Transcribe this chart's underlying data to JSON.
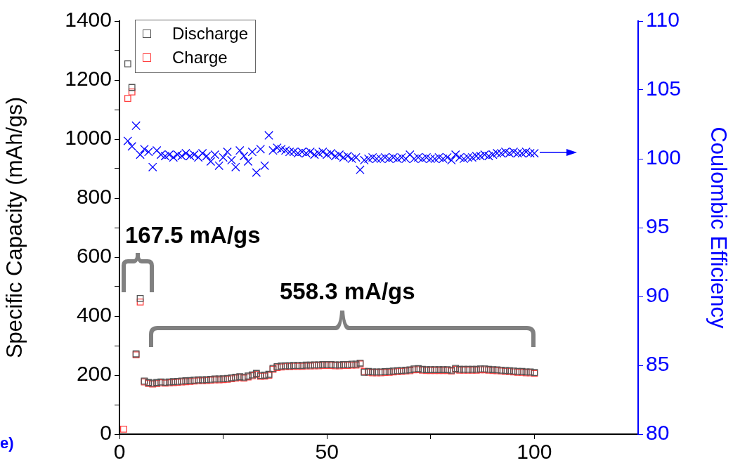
{
  "chart_data": {
    "type": "scatter",
    "ylabel": "Specific Capacity (mAh/gs)",
    "y2label": "Coulombic Efficiency",
    "grid": false,
    "legend": "top left",
    "xlim": [
      0,
      125
    ],
    "xticks": [
      0,
      {
        "value": 25,
        "label": null
      },
      50,
      {
        "value": 75,
        "label": null
      },
      100
    ],
    "ylim": [
      0,
      1400
    ],
    "yticks": [
      0,
      {
        "value": 100,
        "label": null
      },
      200,
      {
        "value": 300,
        "label": null
      },
      400,
      {
        "value": 500,
        "label": null
      },
      600,
      {
        "value": 700,
        "label": null
      },
      800,
      {
        "value": 900,
        "label": null
      },
      1000,
      {
        "value": 1100,
        "label": null
      },
      1200,
      {
        "value": 1300,
        "label": null
      },
      1400
    ],
    "y2lim": [
      80,
      110
    ],
    "y2ticks": [
      80,
      85,
      90,
      95,
      100,
      105,
      110
    ],
    "annotations": [
      "167.5 mA/gs",
      "558.3 mA/gs",
      "e)"
    ],
    "series": [
      {
        "name": "Discharge",
        "color": "#555555",
        "marker": "square",
        "x": [
          2,
          3,
          4,
          5,
          6,
          7,
          8,
          9,
          10,
          11,
          12,
          13,
          14,
          15,
          16,
          17,
          18,
          19,
          20,
          21,
          22,
          23,
          24,
          25,
          26,
          27,
          28,
          29,
          30,
          31,
          32,
          33,
          34,
          35,
          36,
          37,
          38,
          39,
          40,
          41,
          42,
          43,
          44,
          45,
          46,
          47,
          48,
          49,
          50,
          51,
          52,
          53,
          54,
          55,
          56,
          57,
          58,
          59,
          60,
          61,
          62,
          63,
          64,
          65,
          66,
          67,
          68,
          69,
          70,
          71,
          72,
          73,
          74,
          75,
          76,
          77,
          78,
          79,
          80,
          81,
          82,
          83,
          84,
          85,
          86,
          87,
          88,
          89,
          90,
          91,
          92,
          93,
          94,
          95,
          96,
          97,
          98,
          99,
          100
        ],
        "values": [
          1255,
          1175,
          272,
          460,
          180,
          175,
          173,
          175,
          177,
          176,
          177,
          178,
          179,
          180,
          181,
          182,
          183,
          184,
          184,
          185,
          186,
          187,
          187,
          188,
          189,
          191,
          193,
          195,
          193,
          197,
          201,
          206,
          199,
          200,
          203,
          223,
          229,
          231,
          232,
          232,
          233,
          233,
          233,
          234,
          234,
          235,
          235,
          236,
          236,
          236,
          235,
          235,
          236,
          236,
          237,
          237,
          241,
          210,
          213,
          211,
          211,
          211,
          212,
          213,
          214,
          215,
          216,
          217,
          218,
          221,
          222,
          220,
          219,
          219,
          219,
          219,
          219,
          219,
          217,
          223,
          220,
          220,
          220,
          220,
          220,
          221,
          221,
          220,
          219,
          218,
          217,
          216,
          215,
          214,
          213,
          213,
          211,
          211,
          209
        ]
      },
      {
        "name": "Charge",
        "color": "#ff4040",
        "marker": "square",
        "x": [
          1,
          2,
          3,
          4,
          5,
          6,
          7,
          8,
          9,
          10,
          11,
          12,
          13,
          14,
          15,
          16,
          17,
          18,
          19,
          20,
          21,
          22,
          23,
          24,
          25,
          26,
          27,
          28,
          29,
          30,
          31,
          32,
          33,
          34,
          35,
          36,
          37,
          38,
          39,
          40,
          41,
          42,
          43,
          44,
          45,
          46,
          47,
          48,
          49,
          50,
          51,
          52,
          53,
          54,
          55,
          56,
          57,
          58,
          59,
          60,
          61,
          62,
          63,
          64,
          65,
          66,
          67,
          68,
          69,
          70,
          71,
          72,
          73,
          74,
          75,
          76,
          77,
          78,
          79,
          80,
          81,
          82,
          83,
          84,
          85,
          86,
          87,
          88,
          89,
          90,
          91,
          92,
          93,
          94,
          95,
          96,
          97,
          98,
          99,
          100
        ],
        "values": [
          17,
          1138,
          1160,
          269,
          448,
          177,
          172,
          170,
          172,
          174,
          173,
          174,
          175,
          176,
          177,
          178,
          179,
          180,
          181,
          181,
          182,
          183,
          184,
          184,
          185,
          186,
          188,
          190,
          192,
          190,
          194,
          198,
          203,
          196,
          197,
          200,
          220,
          226,
          228,
          229,
          229,
          230,
          230,
          230,
          231,
          231,
          232,
          232,
          233,
          233,
          233,
          232,
          232,
          233,
          233,
          234,
          234,
          238,
          213,
          210,
          208,
          208,
          208,
          209,
          210,
          211,
          212,
          213,
          214,
          215,
          218,
          219,
          217,
          216,
          216,
          216,
          216,
          216,
          216,
          214,
          220,
          217,
          217,
          217,
          217,
          217,
          218,
          218,
          217,
          216,
          215,
          214,
          213,
          212,
          211,
          210,
          210,
          208,
          208,
          206
        ]
      },
      {
        "color": "#0000ff",
        "marker": "cross",
        "axis": "y2",
        "x": [
          2,
          3,
          4,
          5,
          6,
          7,
          8,
          9,
          10,
          11,
          12,
          13,
          14,
          15,
          16,
          17,
          18,
          19,
          20,
          21,
          22,
          23,
          24,
          25,
          26,
          27,
          28,
          29,
          30,
          31,
          32,
          33,
          34,
          35,
          36,
          37,
          38,
          39,
          40,
          41,
          42,
          43,
          44,
          45,
          46,
          47,
          48,
          49,
          50,
          51,
          52,
          53,
          54,
          55,
          56,
          57,
          58,
          59,
          60,
          61,
          62,
          63,
          64,
          65,
          66,
          67,
          68,
          69,
          70,
          71,
          72,
          73,
          74,
          75,
          76,
          77,
          78,
          79,
          80,
          81,
          82,
          83,
          84,
          85,
          86,
          87,
          88,
          89,
          90,
          91,
          92,
          93,
          94,
          95,
          96,
          97,
          98,
          99,
          100
        ],
        "values": [
          101.3,
          100.9,
          102.4,
          100.3,
          100.7,
          100.5,
          99.4,
          100.6,
          100.3,
          100.2,
          100.3,
          100.1,
          100.3,
          100.2,
          100.4,
          100.2,
          100.3,
          100.1,
          100.4,
          100.2,
          99.8,
          100.3,
          99.5,
          100.1,
          100.5,
          99.9,
          99.4,
          100.6,
          100.2,
          99.8,
          100.5,
          99.0,
          100.7,
          99.5,
          101.7,
          100.6,
          100.8,
          100.7,
          100.6,
          100.5,
          100.5,
          100.4,
          100.5,
          100.4,
          100.5,
          100.3,
          100.4,
          100.5,
          100.3,
          100.4,
          100.2,
          100.3,
          100.1,
          100.2,
          100.0,
          100.1,
          99.2,
          99.9,
          100.0,
          100.1,
          100.0,
          100.0,
          100.1,
          100.0,
          100.1,
          100.0,
          100.1,
          100.0,
          100.3,
          100.0,
          100.1,
          100.0,
          100.1,
          100.0,
          100.0,
          100.1,
          100.0,
          100.1,
          99.9,
          100.3,
          100.1,
          100.0,
          100.1,
          100.1,
          100.2,
          100.2,
          100.3,
          100.2,
          100.3,
          100.4,
          100.4,
          100.5,
          100.4,
          100.5,
          100.4,
          100.4,
          100.5,
          100.4,
          100.4
        ]
      }
    ]
  }
}
